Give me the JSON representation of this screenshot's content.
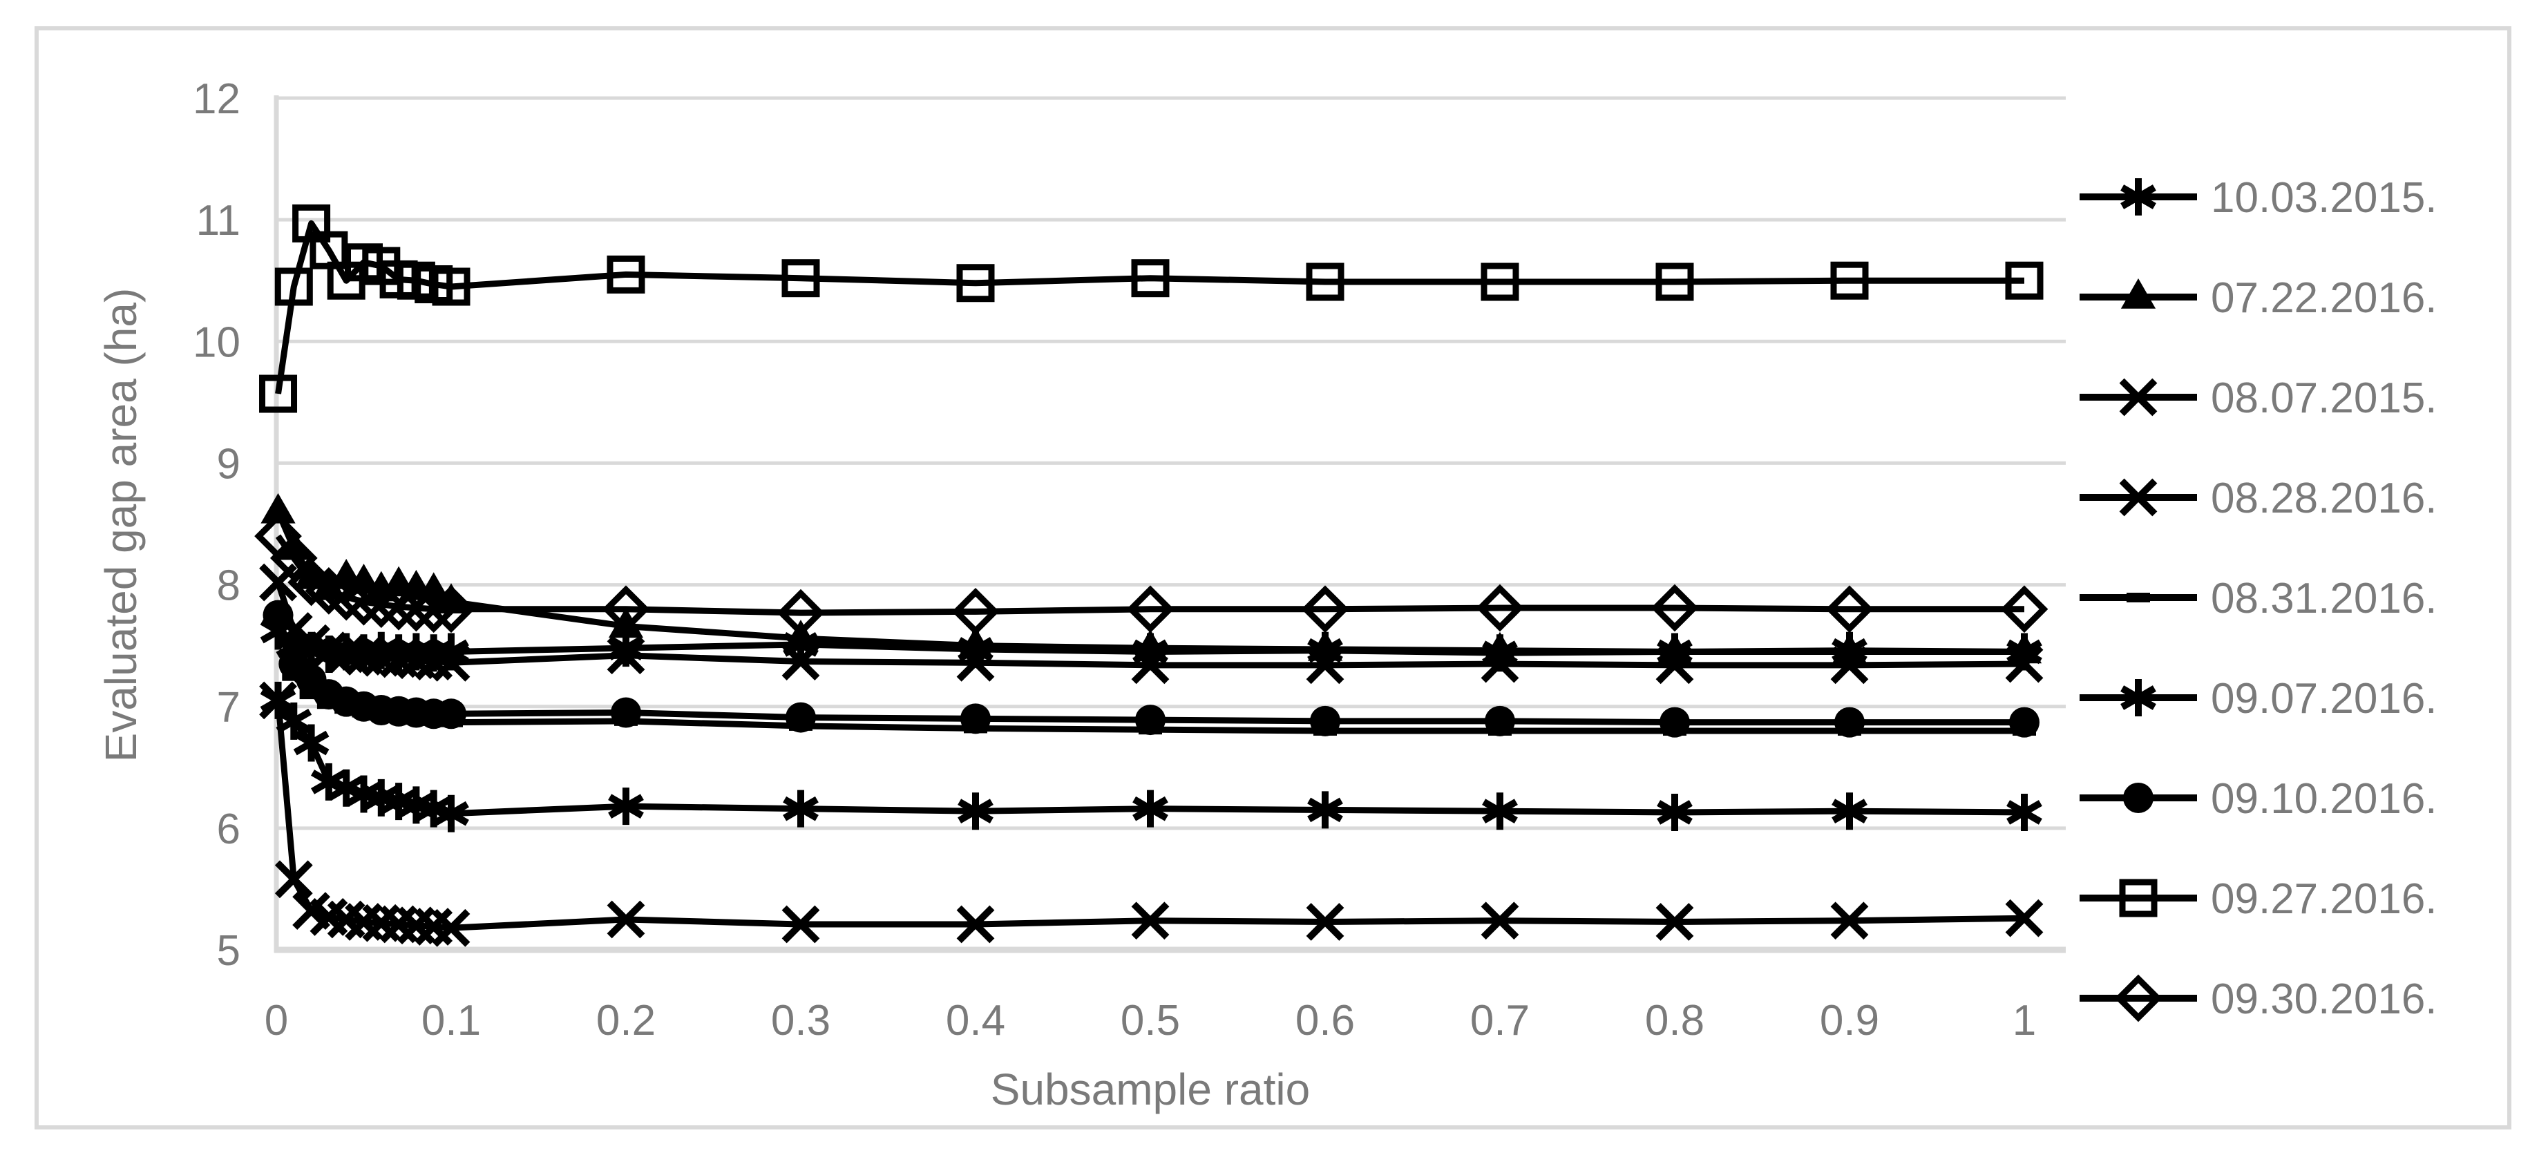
{
  "figure": {
    "background": "#ffffff",
    "border_color": "#d9d9d9"
  },
  "chart_data": {
    "type": "line",
    "title": "",
    "xlabel": "Subsample ratio",
    "ylabel": "Evaluated gap area (ha)",
    "xlim": [
      0,
      1
    ],
    "ylim": [
      5,
      12
    ],
    "grid": "horizontal",
    "legend_position": "right",
    "series_color": "#000000",
    "grid_color": "#d9d9d9",
    "text_color": "#7a7a7a",
    "x_tick_labels": [
      "0",
      "0.1",
      "0.2",
      "0.3",
      "0.4",
      "0.5",
      "0.6",
      "0.7",
      "0.8",
      "0.9",
      "1"
    ],
    "x_tick_values": [
      0,
      0.1,
      0.2,
      0.3,
      0.4,
      0.5,
      0.6,
      0.7,
      0.8,
      0.9,
      1
    ],
    "y_tick_labels": [
      "5",
      "6",
      "7",
      "8",
      "9",
      "10",
      "11",
      "12"
    ],
    "y_tick_values": [
      5,
      6,
      7,
      8,
      9,
      10,
      11,
      12
    ],
    "x": [
      0.001,
      0.01,
      0.02,
      0.03,
      0.04,
      0.05,
      0.06,
      0.07,
      0.08,
      0.09,
      0.1,
      0.2,
      0.3,
      0.4,
      0.5,
      0.6,
      0.7,
      0.8,
      0.9,
      1.0
    ],
    "series": [
      {
        "name": "10.03.2015.",
        "marker": "star6",
        "values": [
          7.62,
          7.5,
          7.46,
          7.43,
          7.45,
          7.44,
          7.46,
          7.44,
          7.45,
          7.44,
          7.45,
          7.48,
          7.51,
          7.47,
          7.45,
          7.46,
          7.44,
          7.45,
          7.46,
          7.45
        ]
      },
      {
        "name": "07.22.2016.",
        "marker": "triangle-filled",
        "values": [
          8.6,
          8.3,
          8.06,
          7.97,
          8.06,
          8.02,
          7.96,
          8.0,
          7.97,
          7.95,
          7.86,
          7.66,
          7.56,
          7.5,
          7.48,
          7.47,
          7.46,
          7.45,
          7.45,
          7.45
        ]
      },
      {
        "name": "08.07.2015.",
        "marker": "x",
        "values": [
          8.02,
          7.62,
          7.52,
          7.46,
          7.43,
          7.41,
          7.4,
          7.39,
          7.38,
          7.37,
          7.36,
          7.42,
          7.37,
          7.36,
          7.34,
          7.34,
          7.35,
          7.34,
          7.34,
          7.35
        ]
      },
      {
        "name": "08.28.2016.",
        "marker": "x",
        "values": [
          7.05,
          5.58,
          5.32,
          5.27,
          5.25,
          5.23,
          5.22,
          5.21,
          5.2,
          5.19,
          5.18,
          5.25,
          5.21,
          5.21,
          5.24,
          5.23,
          5.24,
          5.23,
          5.24,
          5.26
        ]
      },
      {
        "name": "08.31.2016.",
        "marker": "dash",
        "values": [
          7.7,
          7.25,
          7.1,
          7.02,
          6.98,
          6.95,
          6.93,
          6.91,
          6.89,
          6.88,
          6.87,
          6.88,
          6.84,
          6.82,
          6.81,
          6.8,
          6.8,
          6.8,
          6.8,
          6.8
        ]
      },
      {
        "name": "09.07.2016.",
        "marker": "star6",
        "values": [
          7.05,
          6.88,
          6.7,
          6.38,
          6.33,
          6.28,
          6.25,
          6.22,
          6.19,
          6.16,
          6.12,
          6.18,
          6.16,
          6.14,
          6.16,
          6.15,
          6.14,
          6.13,
          6.14,
          6.13
        ]
      },
      {
        "name": "09.10.2016.",
        "marker": "circle-filled",
        "values": [
          7.75,
          7.35,
          7.22,
          7.1,
          7.04,
          7.0,
          6.97,
          6.96,
          6.95,
          6.94,
          6.94,
          6.95,
          6.91,
          6.9,
          6.89,
          6.88,
          6.88,
          6.87,
          6.87,
          6.87
        ]
      },
      {
        "name": "09.27.2016.",
        "marker": "square-open",
        "values": [
          9.57,
          10.45,
          10.97,
          10.75,
          10.5,
          10.65,
          10.62,
          10.51,
          10.5,
          10.47,
          10.45,
          10.55,
          10.52,
          10.48,
          10.52,
          10.49,
          10.49,
          10.49,
          10.5,
          10.5
        ]
      },
      {
        "name": "09.30.2016.",
        "marker": "diamond-open",
        "values": [
          8.4,
          8.22,
          8.02,
          7.95,
          7.9,
          7.86,
          7.84,
          7.82,
          7.81,
          7.8,
          7.8,
          7.8,
          7.77,
          7.78,
          7.8,
          7.8,
          7.81,
          7.81,
          7.8,
          7.8
        ]
      }
    ]
  }
}
